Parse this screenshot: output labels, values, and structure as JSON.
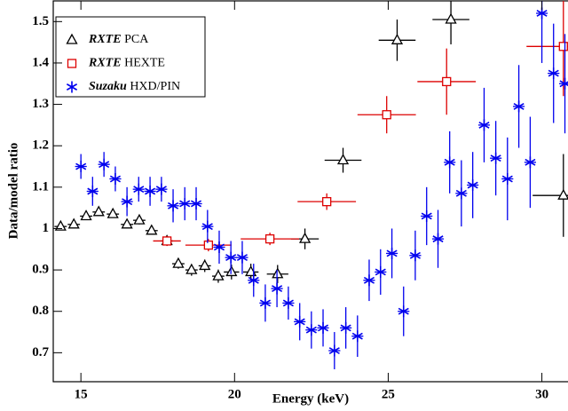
{
  "chart_data": {
    "type": "scatter",
    "x_label": "Energy (keV)",
    "y_label": "Data/model ratio",
    "xlim": [
      14.1,
      30.85
    ],
    "ylim": [
      0.63,
      1.55
    ],
    "xticks": [
      15,
      20,
      25,
      30
    ],
    "yticks": [
      0.7,
      0.8,
      0.9,
      1,
      1.1,
      1.2,
      1.3,
      1.4,
      1.5
    ],
    "legend": "upper left",
    "series": [
      {
        "name": "RXTE PCA",
        "color": "#000000",
        "marker": "triangle",
        "x": [
          14.34,
          14.77,
          15.17,
          15.58,
          16.04,
          16.5,
          16.9,
          17.3,
          17.8,
          18.17,
          18.6,
          19.03,
          19.47,
          19.9,
          20.53,
          21.4,
          22.29,
          23.53,
          25.29,
          27.04,
          30.7
        ],
        "values": [
          1.005,
          1.01,
          1.03,
          1.04,
          1.035,
          1.01,
          1.02,
          0.995,
          0.97,
          0.915,
          0.9,
          0.91,
          0.885,
          0.895,
          0.895,
          0.89,
          0.975,
          1.165,
          1.455,
          1.505,
          1.08
        ],
        "yerr": [
          0.008,
          0.008,
          0.008,
          0.008,
          0.008,
          0.01,
          0.01,
          0.01,
          0.012,
          0.012,
          0.014,
          0.015,
          0.016,
          0.018,
          0.02,
          0.022,
          0.025,
          0.03,
          0.05,
          0.06,
          0.1
        ],
        "xerr": [
          0.2,
          0.2,
          0.2,
          0.2,
          0.2,
          0.2,
          0.2,
          0.2,
          0.2,
          0.2,
          0.2,
          0.2,
          0.2,
          0.25,
          0.25,
          0.35,
          0.45,
          0.6,
          0.6,
          0.6,
          1.0
        ]
      },
      {
        "name": "RXTE HEXTE",
        "color": "#dd0000",
        "marker": "square",
        "x": [
          17.8,
          19.15,
          21.15,
          23.0,
          24.95,
          26.9,
          30.7
        ],
        "values": [
          0.97,
          0.96,
          0.975,
          1.065,
          1.275,
          1.355,
          1.44
        ],
        "yerr": [
          0.012,
          0.015,
          0.015,
          0.02,
          0.045,
          0.08,
          0.12
        ],
        "xerr": [
          0.45,
          0.75,
          0.95,
          0.95,
          0.95,
          0.95,
          1.2
        ]
      },
      {
        "name": "Suzaku HXD/PIN",
        "color": "#0000ee",
        "marker": "star",
        "x": [
          15.0,
          15.38,
          15.75,
          16.12,
          16.5,
          16.88,
          17.25,
          17.62,
          18.0,
          18.38,
          18.75,
          19.12,
          19.5,
          19.88,
          20.25,
          20.62,
          21.0,
          21.38,
          21.75,
          22.12,
          22.5,
          22.88,
          23.25,
          23.62,
          24.0,
          24.38,
          24.75,
          25.12,
          25.5,
          25.88,
          26.25,
          26.62,
          27.0,
          27.38,
          27.75,
          28.12,
          28.5,
          28.88,
          29.25,
          29.62,
          30.0,
          30.38,
          30.75
        ],
        "values": [
          1.15,
          1.09,
          1.155,
          1.12,
          1.065,
          1.095,
          1.09,
          1.095,
          1.055,
          1.06,
          1.06,
          1.005,
          0.955,
          0.93,
          0.93,
          0.875,
          0.82,
          0.855,
          0.82,
          0.775,
          0.755,
          0.76,
          0.705,
          0.76,
          0.74,
          0.875,
          0.895,
          0.94,
          0.8,
          0.935,
          1.03,
          0.975,
          1.16,
          1.085,
          1.105,
          1.25,
          1.17,
          1.12,
          1.295,
          1.16,
          1.52,
          1.375,
          1.35
        ],
        "yerr": [
          0.03,
          0.035,
          0.03,
          0.03,
          0.035,
          0.03,
          0.035,
          0.03,
          0.04,
          0.04,
          0.04,
          0.04,
          0.04,
          0.04,
          0.04,
          0.04,
          0.045,
          0.045,
          0.04,
          0.045,
          0.045,
          0.045,
          0.045,
          0.05,
          0.05,
          0.05,
          0.055,
          0.06,
          0.06,
          0.06,
          0.07,
          0.07,
          0.075,
          0.08,
          0.08,
          0.09,
          0.09,
          0.1,
          0.1,
          0.11,
          0.12,
          0.12,
          0.12
        ],
        "xerr": [
          0.19,
          0.19,
          0.19,
          0.19,
          0.19,
          0.19,
          0.19,
          0.19,
          0.19,
          0.19,
          0.19,
          0.19,
          0.19,
          0.19,
          0.19,
          0.19,
          0.19,
          0.19,
          0.19,
          0.19,
          0.19,
          0.19,
          0.19,
          0.19,
          0.19,
          0.19,
          0.19,
          0.19,
          0.19,
          0.19,
          0.19,
          0.19,
          0.19,
          0.19,
          0.19,
          0.19,
          0.19,
          0.19,
          0.19,
          0.19,
          0.19,
          0.19,
          0.19
        ]
      }
    ]
  }
}
